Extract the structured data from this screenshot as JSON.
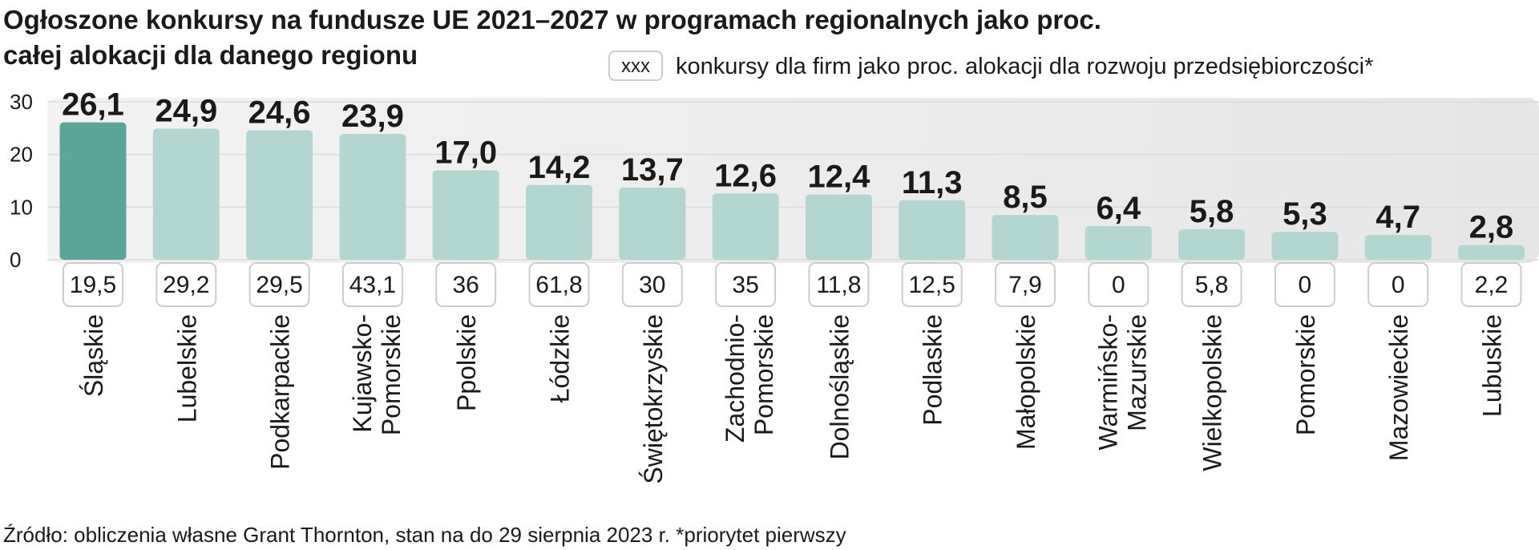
{
  "chart_data": {
    "type": "bar",
    "title": "Ogłoszone konkursy na fundusze UE 2021–2027 w programach regionalnych  jako proc.",
    "subtitle": "całej alokacji dla danego regionu",
    "legend_key": "xxx",
    "source": "Źródło: obliczenia własne Grant Thornton, stan na do 29 sierpnia 2023 r. *priorytet pierwszy",
    "categories": [
      "Śląskie",
      "Lubelskie",
      "Podkarpackie",
      "Kujawsko-Pomorskie",
      "Ppolskie",
      "Łódzkie",
      "Świętokrzyskie",
      "Zachodnio-Pomorskie",
      "Dolnośląskie",
      "Podlaskie",
      "Małopolskie",
      "Warmińsko-Mazurskie",
      "Wielkopolskie",
      "Pomorskie",
      "Mazowieckie",
      "Lubuskie"
    ],
    "series": [
      {
        "colors": [
          "#5ba698",
          "#b3d7d0",
          "#b3d7d0",
          "#b3d7d0",
          "#b3d7d0",
          "#b3d7d0",
          "#b3d7d0",
          "#b3d7d0",
          "#b3d7d0",
          "#b3d7d0",
          "#b3d7d0",
          "#b3d7d0",
          "#b3d7d0",
          "#b3d7d0",
          "#b3d7d0",
          "#b3d7d0"
        ],
        "values": [
          26.1,
          24.9,
          24.6,
          23.9,
          17.0,
          14.2,
          13.7,
          12.6,
          12.4,
          11.3,
          8.5,
          6.4,
          5.8,
          5.3,
          4.7,
          2.8
        ],
        "value_labels": [
          "26,1",
          "24,9",
          "24,6",
          "23,9",
          "17,0",
          "14,2",
          "13,7",
          "12,6",
          "12,4",
          "11,3",
          "8,5",
          "6,4",
          "5,8",
          "5,3",
          "4,7",
          "2,8"
        ]
      },
      {
        "name": "konkursy dla firm jako proc. alokacji dla rozwoju przedsiębiorczości*",
        "values": [
          19.5,
          29.2,
          29.5,
          43.1,
          36,
          61.8,
          30,
          35,
          11.8,
          12.5,
          7.9,
          0,
          5.8,
          0,
          0,
          2.2
        ],
        "value_labels": [
          "19,5",
          "29,2",
          "29,5",
          "43,1",
          "36",
          "61,8",
          "30",
          "35",
          "11,8",
          "12,5",
          "7,9",
          "0",
          "5,8",
          "0",
          "0",
          "2,2"
        ]
      }
    ],
    "ylim": [
      0,
      30
    ],
    "yticks": [
      0,
      10,
      20,
      30
    ],
    "grid": true
  }
}
